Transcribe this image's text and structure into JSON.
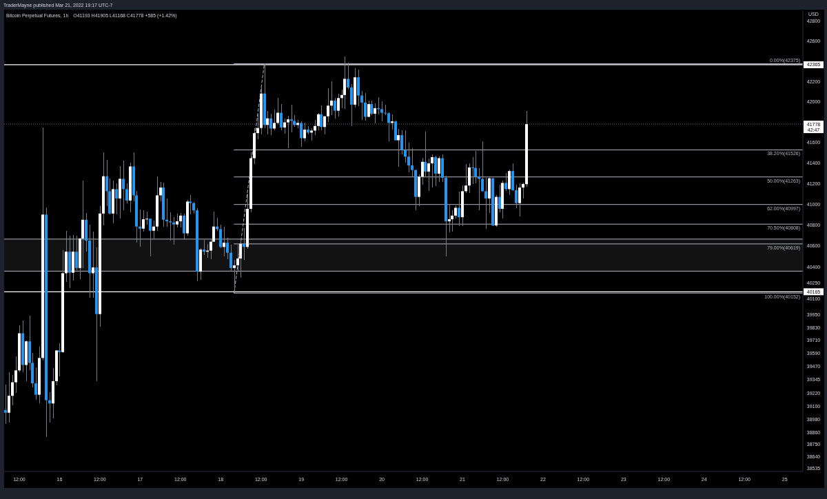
{
  "chart_data": {
    "type": "candlestick",
    "title": "Bitcoin Perpetual Futures, 1h",
    "subtitle": "O41193 H41905 L41168 C41778 +585 (+1.42%)",
    "ylabel": "USD",
    "annotations": [
      "TraderMayne published Mar 21, 2022 19:17 UTC-7",
      "42:47"
    ],
    "log": true,
    "ylim": [
      38505,
      42910
    ],
    "yticks": [
      42800,
      42600,
      42200,
      42000,
      41600,
      41400,
      41200,
      41000,
      40800,
      40600,
      40400,
      40250,
      40100,
      39950,
      39830,
      39710,
      39590,
      39470,
      39345,
      39220,
      39100,
      38980,
      38860,
      38750,
      38640,
      38535
    ],
    "xlim": [
      "2022-03-15T07:30",
      "2022-03-25T05:24"
    ],
    "xticks": [
      {
        "value": "2022-03-15T12:00",
        "label": "12:00"
      },
      {
        "value": "2022-03-16",
        "label": "16"
      },
      {
        "value": "2022-03-16T12:00",
        "label": "12:00"
      },
      {
        "value": "2022-03-17",
        "label": "17"
      },
      {
        "value": "2022-03-17T12:00",
        "label": "12:00"
      },
      {
        "value": "2022-03-18",
        "label": "18"
      },
      {
        "value": "2022-03-18T12:00",
        "label": "12:00"
      },
      {
        "value": "2022-03-19",
        "label": "19"
      },
      {
        "value": "2022-03-19T12:00",
        "label": "12:00"
      },
      {
        "value": "2022-03-20",
        "label": "20"
      },
      {
        "value": "2022-03-20T12:00",
        "label": "12:00"
      },
      {
        "value": "2022-03-21",
        "label": "21"
      },
      {
        "value": "2022-03-21T12:00",
        "label": "12:00"
      },
      {
        "value": "2022-03-22",
        "label": "22"
      },
      {
        "value": "2022-03-22T12:00",
        "label": "12:00"
      },
      {
        "value": "2022-03-23",
        "label": "23"
      },
      {
        "value": "2022-03-23T12:00",
        "label": "12:00"
      },
      {
        "value": "2022-03-24",
        "label": "24"
      },
      {
        "value": "2022-03-24T12:00",
        "label": "12:00"
      },
      {
        "value": "2022-03-25",
        "label": "25"
      }
    ],
    "x": [
      "2022-03-15T08:00",
      "2022-03-15T09:00",
      "2022-03-15T10:00",
      "2022-03-15T11:00",
      "2022-03-15T12:00",
      "2022-03-15T13:00",
      "2022-03-15T14:00",
      "2022-03-15T15:00",
      "2022-03-15T16:00",
      "2022-03-15T17:00",
      "2022-03-15T18:00",
      "2022-03-15T19:00",
      "2022-03-15T20:00",
      "2022-03-15T21:00",
      "2022-03-15T22:00",
      "2022-03-15T23:00",
      "2022-03-16T00:00",
      "2022-03-16T01:00",
      "2022-03-16T02:00",
      "2022-03-16T03:00",
      "2022-03-16T04:00",
      "2022-03-16T05:00",
      "2022-03-16T06:00",
      "2022-03-16T07:00",
      "2022-03-16T08:00",
      "2022-03-16T09:00",
      "2022-03-16T10:00",
      "2022-03-16T11:00",
      "2022-03-16T12:00",
      "2022-03-16T13:00",
      "2022-03-16T14:00",
      "2022-03-16T15:00",
      "2022-03-16T16:00",
      "2022-03-16T17:00",
      "2022-03-16T18:00",
      "2022-03-16T19:00",
      "2022-03-16T20:00",
      "2022-03-16T21:00",
      "2022-03-16T22:00",
      "2022-03-16T23:00",
      "2022-03-17T00:00",
      "2022-03-17T01:00",
      "2022-03-17T02:00",
      "2022-03-17T03:00",
      "2022-03-17T04:00",
      "2022-03-17T05:00",
      "2022-03-17T06:00",
      "2022-03-17T07:00",
      "2022-03-17T08:00",
      "2022-03-17T09:00",
      "2022-03-17T10:00",
      "2022-03-17T11:00",
      "2022-03-17T12:00",
      "2022-03-17T13:00",
      "2022-03-17T14:00",
      "2022-03-17T15:00",
      "2022-03-17T16:00",
      "2022-03-17T17:00",
      "2022-03-17T18:00",
      "2022-03-17T19:00",
      "2022-03-17T20:00",
      "2022-03-17T21:00",
      "2022-03-17T22:00",
      "2022-03-17T23:00",
      "2022-03-18T00:00",
      "2022-03-18T01:00",
      "2022-03-18T02:00",
      "2022-03-18T03:00",
      "2022-03-18T04:00",
      "2022-03-18T05:00",
      "2022-03-18T06:00",
      "2022-03-18T07:00",
      "2022-03-18T08:00",
      "2022-03-18T09:00",
      "2022-03-18T10:00",
      "2022-03-18T11:00",
      "2022-03-18T12:00",
      "2022-03-18T13:00",
      "2022-03-18T14:00",
      "2022-03-18T15:00",
      "2022-03-18T16:00",
      "2022-03-18T17:00",
      "2022-03-18T18:00",
      "2022-03-18T19:00",
      "2022-03-18T20:00",
      "2022-03-18T21:00",
      "2022-03-18T22:00",
      "2022-03-18T23:00",
      "2022-03-19T00:00",
      "2022-03-19T01:00",
      "2022-03-19T02:00",
      "2022-03-19T03:00",
      "2022-03-19T04:00",
      "2022-03-19T05:00",
      "2022-03-19T06:00",
      "2022-03-19T07:00",
      "2022-03-19T08:00",
      "2022-03-19T09:00",
      "2022-03-19T10:00",
      "2022-03-19T11:00",
      "2022-03-19T12:00",
      "2022-03-19T13:00",
      "2022-03-19T14:00",
      "2022-03-19T15:00",
      "2022-03-19T16:00",
      "2022-03-19T17:00",
      "2022-03-19T18:00",
      "2022-03-19T19:00",
      "2022-03-19T20:00",
      "2022-03-19T21:00",
      "2022-03-19T22:00",
      "2022-03-19T23:00",
      "2022-03-20T00:00",
      "2022-03-20T01:00",
      "2022-03-20T02:00",
      "2022-03-20T03:00",
      "2022-03-20T04:00",
      "2022-03-20T05:00",
      "2022-03-20T06:00",
      "2022-03-20T07:00",
      "2022-03-20T08:00",
      "2022-03-20T09:00",
      "2022-03-20T10:00",
      "2022-03-20T11:00",
      "2022-03-20T12:00",
      "2022-03-20T13:00",
      "2022-03-20T14:00",
      "2022-03-20T15:00",
      "2022-03-20T16:00",
      "2022-03-20T17:00",
      "2022-03-20T18:00",
      "2022-03-20T19:00",
      "2022-03-20T20:00",
      "2022-03-20T21:00",
      "2022-03-20T22:00",
      "2022-03-20T23:00",
      "2022-03-21T00:00",
      "2022-03-21T01:00",
      "2022-03-21T02:00",
      "2022-03-21T03:00",
      "2022-03-21T04:00",
      "2022-03-21T05:00",
      "2022-03-21T06:00",
      "2022-03-21T07:00",
      "2022-03-21T08:00",
      "2022-03-21T09:00",
      "2022-03-21T10:00",
      "2022-03-21T11:00",
      "2022-03-21T12:00",
      "2022-03-21T13:00",
      "2022-03-21T14:00",
      "2022-03-21T15:00",
      "2022-03-21T16:00",
      "2022-03-21T17:00",
      "2022-03-21T18:00",
      "2022-03-21T19:00"
    ],
    "ohlc": [
      [
        39065,
        39300,
        38940,
        39040
      ],
      [
        39040,
        39415,
        38950,
        39195
      ],
      [
        39195,
        39385,
        39110,
        39320
      ],
      [
        39320,
        39560,
        39225,
        39430
      ],
      [
        39430,
        39850,
        39415,
        39775
      ],
      [
        39775,
        39895,
        39415,
        39480
      ],
      [
        39480,
        39705,
        39330,
        39700
      ],
      [
        39700,
        39940,
        39430,
        39500
      ],
      [
        39500,
        39590,
        39270,
        39310
      ],
      [
        39310,
        39455,
        39160,
        39205
      ],
      [
        39205,
        39650,
        39125,
        39545
      ],
      [
        39545,
        41745,
        39525,
        40900
      ],
      [
        40900,
        40970,
        38820,
        39155
      ],
      [
        39155,
        39230,
        38950,
        39125
      ],
      [
        39125,
        39450,
        38990,
        39330
      ],
      [
        39330,
        39620,
        39290,
        39615
      ],
      [
        39615,
        39680,
        39375,
        39600
      ],
      [
        39600,
        40560,
        39590,
        40340
      ],
      [
        40340,
        40745,
        40260,
        40545
      ],
      [
        40545,
        40700,
        40200,
        40345
      ],
      [
        40345,
        40705,
        40270,
        40545
      ],
      [
        40545,
        40700,
        40370,
        40390
      ],
      [
        40390,
        40675,
        40285,
        40670
      ],
      [
        40670,
        41225,
        40390,
        40850
      ],
      [
        40850,
        40915,
        40545,
        40650
      ],
      [
        40650,
        40800,
        40110,
        40340
      ],
      [
        40340,
        40740,
        40110,
        40395
      ],
      [
        40395,
        40585,
        39330,
        39955
      ],
      [
        39955,
        40980,
        39835,
        40910
      ],
      [
        40910,
        41505,
        40795,
        41270
      ],
      [
        41270,
        41430,
        40980,
        41125
      ],
      [
        41125,
        41245,
        40900,
        40910
      ],
      [
        40910,
        41230,
        40815,
        41145
      ],
      [
        41145,
        41200,
        40905,
        41055
      ],
      [
        41055,
        41365,
        40860,
        41245
      ],
      [
        41245,
        41420,
        40945,
        41145
      ],
      [
        41145,
        41200,
        41010,
        41035
      ],
      [
        41035,
        41405,
        40920,
        41365
      ],
      [
        41365,
        41505,
        41030,
        41085
      ],
      [
        41085,
        41130,
        40630,
        40785
      ],
      [
        40785,
        40950,
        40595,
        40765
      ],
      [
        40765,
        40940,
        40735,
        40855
      ],
      [
        40855,
        40930,
        40800,
        40860
      ],
      [
        40860,
        40865,
        40500,
        40745
      ],
      [
        40745,
        40845,
        40670,
        40785
      ],
      [
        40785,
        41265,
        40745,
        41085
      ],
      [
        41085,
        41215,
        41030,
        41160
      ],
      [
        41160,
        41205,
        40785,
        40850
      ],
      [
        40850,
        41055,
        40785,
        40835
      ],
      [
        40835,
        40925,
        40650,
        40825
      ],
      [
        40825,
        40875,
        40610,
        40805
      ],
      [
        40805,
        40910,
        40775,
        40835
      ],
      [
        40835,
        40915,
        40775,
        40890
      ],
      [
        40890,
        40910,
        40660,
        40720
      ],
      [
        40720,
        41040,
        40700,
        41025
      ],
      [
        41025,
        41090,
        40900,
        41010
      ],
      [
        41010,
        41020,
        40910,
        40940
      ],
      [
        40940,
        40960,
        40265,
        40355
      ],
      [
        40355,
        40580,
        40275,
        40565
      ],
      [
        40565,
        40655,
        40510,
        40545
      ],
      [
        40545,
        40615,
        40485,
        40555
      ],
      [
        40555,
        40670,
        40475,
        40640
      ],
      [
        40640,
        40930,
        40635,
        40785
      ],
      [
        40785,
        40870,
        40745,
        40760
      ],
      [
        40760,
        40805,
        40580,
        40590
      ],
      [
        40590,
        40780,
        40500,
        40630
      ],
      [
        40630,
        40675,
        40475,
        40535
      ],
      [
        40535,
        40610,
        40355,
        40390
      ],
      [
        40390,
        40465,
        40152,
        40415
      ],
      [
        40415,
        40610,
        40365,
        40480
      ],
      [
        40480,
        40650,
        40300,
        40620
      ],
      [
        40620,
        40770,
        40465,
        40590
      ],
      [
        40590,
        41100,
        40570,
        40955
      ],
      [
        40955,
        41505,
        40925,
        41445
      ],
      [
        41445,
        41735,
        41390,
        41690
      ],
      [
        41690,
        41880,
        41630,
        41740
      ],
      [
        41740,
        42140,
        41680,
        42080
      ],
      [
        42080,
        42375,
        41740,
        41770
      ],
      [
        41770,
        41910,
        41680,
        41835
      ],
      [
        41835,
        41880,
        41670,
        41735
      ],
      [
        41735,
        41920,
        41715,
        41790
      ],
      [
        41790,
        42035,
        41780,
        41890
      ],
      [
        41890,
        41975,
        41715,
        41745
      ],
      [
        41745,
        41830,
        41685,
        41795
      ],
      [
        41795,
        41860,
        41540,
        41825
      ],
      [
        41825,
        41970,
        41695,
        41810
      ],
      [
        41810,
        41865,
        41750,
        41770
      ],
      [
        41770,
        41820,
        41735,
        41790
      ],
      [
        41790,
        41805,
        41555,
        41640
      ],
      [
        41640,
        41790,
        41610,
        41725
      ],
      [
        41725,
        41760,
        41680,
        41695
      ],
      [
        41695,
        41740,
        41620,
        41715
      ],
      [
        41715,
        41820,
        41670,
        41760
      ],
      [
        41760,
        41890,
        41715,
        41875
      ],
      [
        41875,
        41965,
        41715,
        41750
      ],
      [
        41750,
        41860,
        41680,
        41855
      ],
      [
        41855,
        42135,
        41800,
        41960
      ],
      [
        41960,
        42200,
        41870,
        42010
      ],
      [
        42010,
        42040,
        41830,
        41910
      ],
      [
        41910,
        42075,
        41850,
        42035
      ],
      [
        42035,
        42120,
        41935,
        42065
      ],
      [
        42065,
        42445,
        41930,
        42225
      ],
      [
        42225,
        42385,
        42125,
        42140
      ],
      [
        42140,
        42170,
        41760,
        41970
      ],
      [
        41970,
        42330,
        41940,
        42240
      ],
      [
        42240,
        42315,
        41955,
        42060
      ],
      [
        42060,
        42105,
        41820,
        41990
      ],
      [
        41990,
        42085,
        41815,
        41850
      ],
      [
        41850,
        42010,
        41845,
        41975
      ],
      [
        41975,
        42010,
        41865,
        41880
      ],
      [
        41880,
        41980,
        41785,
        41935
      ],
      [
        41935,
        42045,
        41875,
        41925
      ],
      [
        41925,
        42000,
        41805,
        41890
      ],
      [
        41890,
        41970,
        41865,
        41885
      ],
      [
        41885,
        41895,
        41610,
        41790
      ],
      [
        41790,
        41875,
        41725,
        41805
      ],
      [
        41805,
        41810,
        41615,
        41620
      ],
      [
        41620,
        41730,
        41360,
        41670
      ],
      [
        41670,
        41715,
        41485,
        41525
      ],
      [
        41525,
        41720,
        41400,
        41460
      ],
      [
        41460,
        41595,
        41305,
        41375
      ],
      [
        41375,
        41545,
        41260,
        41330
      ],
      [
        41330,
        41335,
        40940,
        41070
      ],
      [
        41070,
        41285,
        40980,
        41265
      ],
      [
        41265,
        41450,
        41185,
        41410
      ],
      [
        41410,
        41705,
        41260,
        41315
      ],
      [
        41315,
        41440,
        41125,
        41395
      ],
      [
        41395,
        41480,
        41160,
        41455
      ],
      [
        41455,
        41470,
        41175,
        41295
      ],
      [
        41295,
        41460,
        41215,
        41445
      ],
      [
        41445,
        41480,
        41215,
        41255
      ],
      [
        41255,
        41275,
        40500,
        40835
      ],
      [
        40835,
        41000,
        40730,
        40855
      ],
      [
        40855,
        40945,
        40735,
        40890
      ],
      [
        40890,
        40985,
        40865,
        40965
      ],
      [
        40965,
        41120,
        40790,
        40875
      ],
      [
        40875,
        41180,
        40790,
        41125
      ],
      [
        41125,
        41385,
        41110,
        41180
      ],
      [
        41180,
        41395,
        41110,
        41355
      ],
      [
        41355,
        41455,
        41195,
        41350
      ],
      [
        41350,
        41515,
        41200,
        41265
      ],
      [
        41265,
        41345,
        40940,
        41245
      ],
      [
        41245,
        41610,
        41120,
        41125
      ],
      [
        41125,
        41255,
        40765,
        41055
      ],
      [
        41055,
        41260,
        40915,
        41250
      ],
      [
        41250,
        41255,
        40790,
        40795
      ],
      [
        40795,
        41085,
        40780,
        41070
      ],
      [
        41070,
        41185,
        40920,
        40955
      ],
      [
        40955,
        41225,
        40865,
        41205
      ],
      [
        41205,
        41300,
        41130,
        41145
      ],
      [
        41145,
        41335,
        41085,
        41320
      ],
      [
        41320,
        41395,
        41125,
        41135
      ],
      [
        41135,
        41185,
        40965,
        41010
      ],
      [
        41010,
        41200,
        40885,
        41160
      ],
      [
        41160,
        41210,
        41055,
        41195
      ],
      [
        41193,
        41905,
        41168,
        41778
      ]
    ],
    "colors": [
      "#2196f3",
      "#ffffff",
      "#ffffff",
      "#ffffff",
      "#ffffff",
      "#2196f3",
      "#ffffff",
      "#2196f3",
      "#2196f3",
      "#2196f3",
      "#ffffff",
      "#ffffff",
      "#2196f3",
      "#2196f3",
      "#ffffff",
      "#ffffff",
      "#2196f3",
      "#ffffff",
      "#ffffff",
      "#2196f3",
      "#ffffff",
      "#2196f3",
      "#ffffff",
      "#ffffff",
      "#2196f3",
      "#2196f3",
      "#ffffff",
      "#2196f3",
      "#ffffff",
      "#ffffff",
      "#2196f3",
      "#2196f3",
      "#ffffff",
      "#2196f3",
      "#ffffff",
      "#2196f3",
      "#2196f3",
      "#ffffff",
      "#2196f3",
      "#2196f3",
      "#2196f3",
      "#ffffff",
      "#ffffff",
      "#2196f3",
      "#ffffff",
      "#ffffff",
      "#ffffff",
      "#2196f3",
      "#2196f3",
      "#2196f3",
      "#2196f3",
      "#ffffff",
      "#ffffff",
      "#2196f3",
      "#ffffff",
      "#2196f3",
      "#2196f3",
      "#2196f3",
      "#ffffff",
      "#2196f3",
      "#ffffff",
      "#ffffff",
      "#ffffff",
      "#2196f3",
      "#2196f3",
      "#ffffff",
      "#2196f3",
      "#2196f3",
      "#ffffff",
      "#ffffff",
      "#ffffff",
      "#2196f3",
      "#ffffff",
      "#ffffff",
      "#ffffff",
      "#ffffff",
      "#ffffff",
      "#2196f3",
      "#ffffff",
      "#2196f3",
      "#ffffff",
      "#ffffff",
      "#2196f3",
      "#ffffff",
      "#ffffff",
      "#2196f3",
      "#2196f3",
      "#ffffff",
      "#2196f3",
      "#ffffff",
      "#2196f3",
      "#ffffff",
      "#ffffff",
      "#ffffff",
      "#2196f3",
      "#ffffff",
      "#ffffff",
      "#ffffff",
      "#2196f3",
      "#ffffff",
      "#ffffff",
      "#ffffff",
      "#2196f3",
      "#2196f3",
      "#ffffff",
      "#2196f3",
      "#2196f3",
      "#2196f3",
      "#ffffff",
      "#2196f3",
      "#ffffff",
      "#2196f3",
      "#2196f3",
      "#2196f3",
      "#2196f3",
      "#ffffff",
      "#2196f3",
      "#ffffff",
      "#2196f3",
      "#2196f3",
      "#2196f3",
      "#2196f3",
      "#2196f3",
      "#ffffff",
      "#ffffff",
      "#2196f3",
      "#ffffff",
      "#ffffff",
      "#2196f3",
      "#ffffff",
      "#2196f3",
      "#2196f3",
      "#ffffff",
      "#ffffff",
      "#ffffff",
      "#2196f3",
      "#ffffff",
      "#ffffff",
      "#ffffff",
      "#2196f3",
      "#2196f3",
      "#2196f3",
      "#2196f3",
      "#2196f3",
      "#ffffff",
      "#2196f3",
      "#ffffff",
      "#2196f3",
      "#ffffff",
      "#2196f3",
      "#ffffff",
      "#2196f3",
      "#2196f3",
      "#ffffff",
      "#ffffff",
      "#ffffff"
    ],
    "ref_lines": [
      {
        "axis": "y",
        "value": 42365,
        "label": "42365",
        "color": "#ffffff"
      },
      {
        "axis": "y",
        "value": 40165,
        "label": "40165",
        "color": "#ffffff"
      },
      {
        "axis": "y",
        "value": 41778,
        "label": "41778",
        "color": "#787b86",
        "line_style": "dotted"
      }
    ],
    "bands": [
      {
        "axis": "y",
        "from": 40360,
        "to": 40665,
        "color": "#b2b5be"
      }
    ],
    "series": [
      {
        "type": "line",
        "color": "#b2b5be",
        "line_style": "dashed",
        "x": [
          "2022-03-18T04:00",
          "2022-03-18T13:00"
        ],
        "values": [
          40152,
          42375
        ]
      },
      {
        "type": "line",
        "name": "0.00%(42375)",
        "color": "#b2b5be",
        "x": [
          "2022-03-18T04:00",
          "2022-03-25T05:24"
        ],
        "values": [
          42375,
          42375
        ]
      },
      {
        "type": "line",
        "name": "38.20%(41526)",
        "color": "#b2b5be",
        "x": [
          "2022-03-18T04:00",
          "2022-03-25T05:24"
        ],
        "values": [
          41526,
          41526
        ]
      },
      {
        "type": "line",
        "name": "50.00%(41263)",
        "color": "#b2b5be",
        "x": [
          "2022-03-18T04:00",
          "2022-03-25T05:24"
        ],
        "values": [
          41263,
          41263
        ]
      },
      {
        "type": "line",
        "name": "62.00%(40997)",
        "color": "#b2b5be",
        "x": [
          "2022-03-18T04:00",
          "2022-03-25T05:24"
        ],
        "values": [
          40997,
          40997
        ]
      },
      {
        "type": "line",
        "name": "70.50%(40808)",
        "color": "#b2b5be",
        "x": [
          "2022-03-18T04:00",
          "2022-03-25T05:24"
        ],
        "values": [
          40808,
          40808
        ]
      },
      {
        "type": "line",
        "name": "79.00%(40619)",
        "color": "#b2b5be",
        "x": [
          "2022-03-18T04:00",
          "2022-03-25T05:24"
        ],
        "values": [
          40619,
          40619
        ]
      },
      {
        "type": "line",
        "name": "100.00%(40152)",
        "color": "#b2b5be",
        "x": [
          "2022-03-18T04:00",
          "2022-03-25T05:24"
        ],
        "values": [
          40152,
          40152
        ]
      }
    ]
  }
}
